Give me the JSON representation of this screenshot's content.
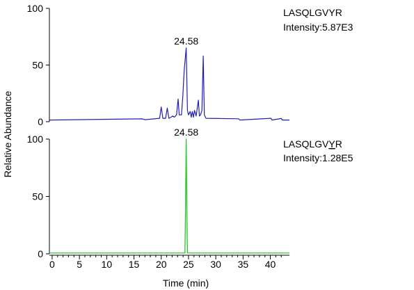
{
  "chart_data": {
    "type": "line",
    "ylabel": "Relative Abundance",
    "xlabel": "Time (min)",
    "x_ticks": [
      0,
      5,
      10,
      15,
      20,
      25,
      30,
      35,
      40
    ],
    "xlim": [
      -0.5,
      43.5
    ],
    "panels": [
      {
        "name": "LASQLGVYR",
        "intensity_label": "Intensity:5.87E3",
        "color": "#1e1eb4",
        "ylim": [
          0,
          100
        ],
        "y_ticks": [
          0,
          50,
          100
        ],
        "peak_label": "24.58",
        "peak_label_x": 24.58,
        "baseline": 1.5,
        "series": [
          {
            "x": 16.5,
            "y": 2.5
          },
          {
            "x": 17.0,
            "y": 1.8
          },
          {
            "x": 19.7,
            "y": 3
          },
          {
            "x": 20.0,
            "y": 13
          },
          {
            "x": 20.3,
            "y": 3
          },
          {
            "x": 20.8,
            "y": 3
          },
          {
            "x": 21.1,
            "y": 12
          },
          {
            "x": 21.4,
            "y": 3
          },
          {
            "x": 21.8,
            "y": 4
          },
          {
            "x": 22.1,
            "y": 5
          },
          {
            "x": 22.4,
            "y": 4
          },
          {
            "x": 22.8,
            "y": 6
          },
          {
            "x": 23.1,
            "y": 20
          },
          {
            "x": 23.3,
            "y": 6
          },
          {
            "x": 23.7,
            "y": 6
          },
          {
            "x": 23.95,
            "y": 22
          },
          {
            "x": 24.2,
            "y": 45
          },
          {
            "x": 24.58,
            "y": 65
          },
          {
            "x": 24.8,
            "y": 10
          },
          {
            "x": 25.0,
            "y": 6
          },
          {
            "x": 25.3,
            "y": 9
          },
          {
            "x": 25.5,
            "y": 4
          },
          {
            "x": 25.7,
            "y": 9
          },
          {
            "x": 25.9,
            "y": 4
          },
          {
            "x": 26.1,
            "y": 10
          },
          {
            "x": 26.4,
            "y": 5
          },
          {
            "x": 26.8,
            "y": 19
          },
          {
            "x": 27.0,
            "y": 5
          },
          {
            "x": 27.2,
            "y": 6
          },
          {
            "x": 27.45,
            "y": 10
          },
          {
            "x": 27.7,
            "y": 58
          },
          {
            "x": 27.9,
            "y": 6
          },
          {
            "x": 28.2,
            "y": 3
          },
          {
            "x": 34.2,
            "y": 2.6
          },
          {
            "x": 34.4,
            "y": 1.5
          },
          {
            "x": 40.1,
            "y": 3
          },
          {
            "x": 40.3,
            "y": 1.5
          },
          {
            "x": 42.0,
            "y": 2.8
          },
          {
            "x": 42.2,
            "y": 1.5
          }
        ]
      },
      {
        "name": "LASQLGVYR",
        "name_underline_index": 7,
        "intensity_label": "Intensity:1.28E5",
        "color": "#19c219",
        "ylim": [
          0,
          100
        ],
        "y_ticks": [
          0,
          50,
          100
        ],
        "peak_label": "24.58",
        "peak_label_x": 24.58,
        "baseline": 0.7,
        "series": [
          {
            "x": 24.35,
            "y": 0.7
          },
          {
            "x": 24.45,
            "y": 40
          },
          {
            "x": 24.58,
            "y": 100
          },
          {
            "x": 24.68,
            "y": 45
          },
          {
            "x": 24.8,
            "y": 0.7
          }
        ]
      }
    ]
  }
}
